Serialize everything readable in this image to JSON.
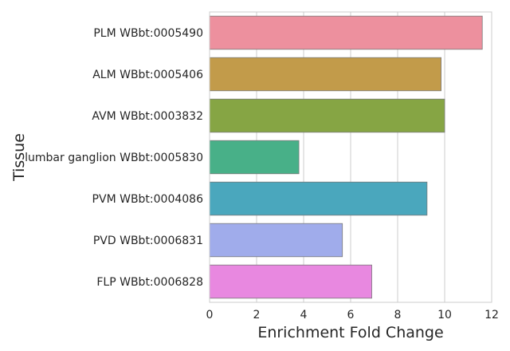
{
  "chart_data": {
    "type": "bar",
    "orientation": "horizontal",
    "xlabel": "Enrichment Fold Change",
    "ylabel": "Tissue",
    "xlim": [
      0,
      12
    ],
    "xticks": [
      0,
      2,
      4,
      6,
      8,
      10,
      12
    ],
    "grid": true,
    "categories": [
      "PLM WBbt:0005490",
      "ALM WBbt:0005406",
      "AVM WBbt:0003832",
      "lumbar ganglion WBbt:0005830",
      "PVM WBbt:0004086",
      "PVD WBbt:0006831",
      "FLP WBbt:0006828"
    ],
    "values": [
      11.6,
      9.85,
      10.0,
      3.8,
      9.25,
      5.65,
      6.9
    ],
    "colors": [
      "#ed909e",
      "#c29b4a",
      "#86a544",
      "#48b088",
      "#4aa7bd",
      "#a0aceb",
      "#e888e0"
    ]
  }
}
